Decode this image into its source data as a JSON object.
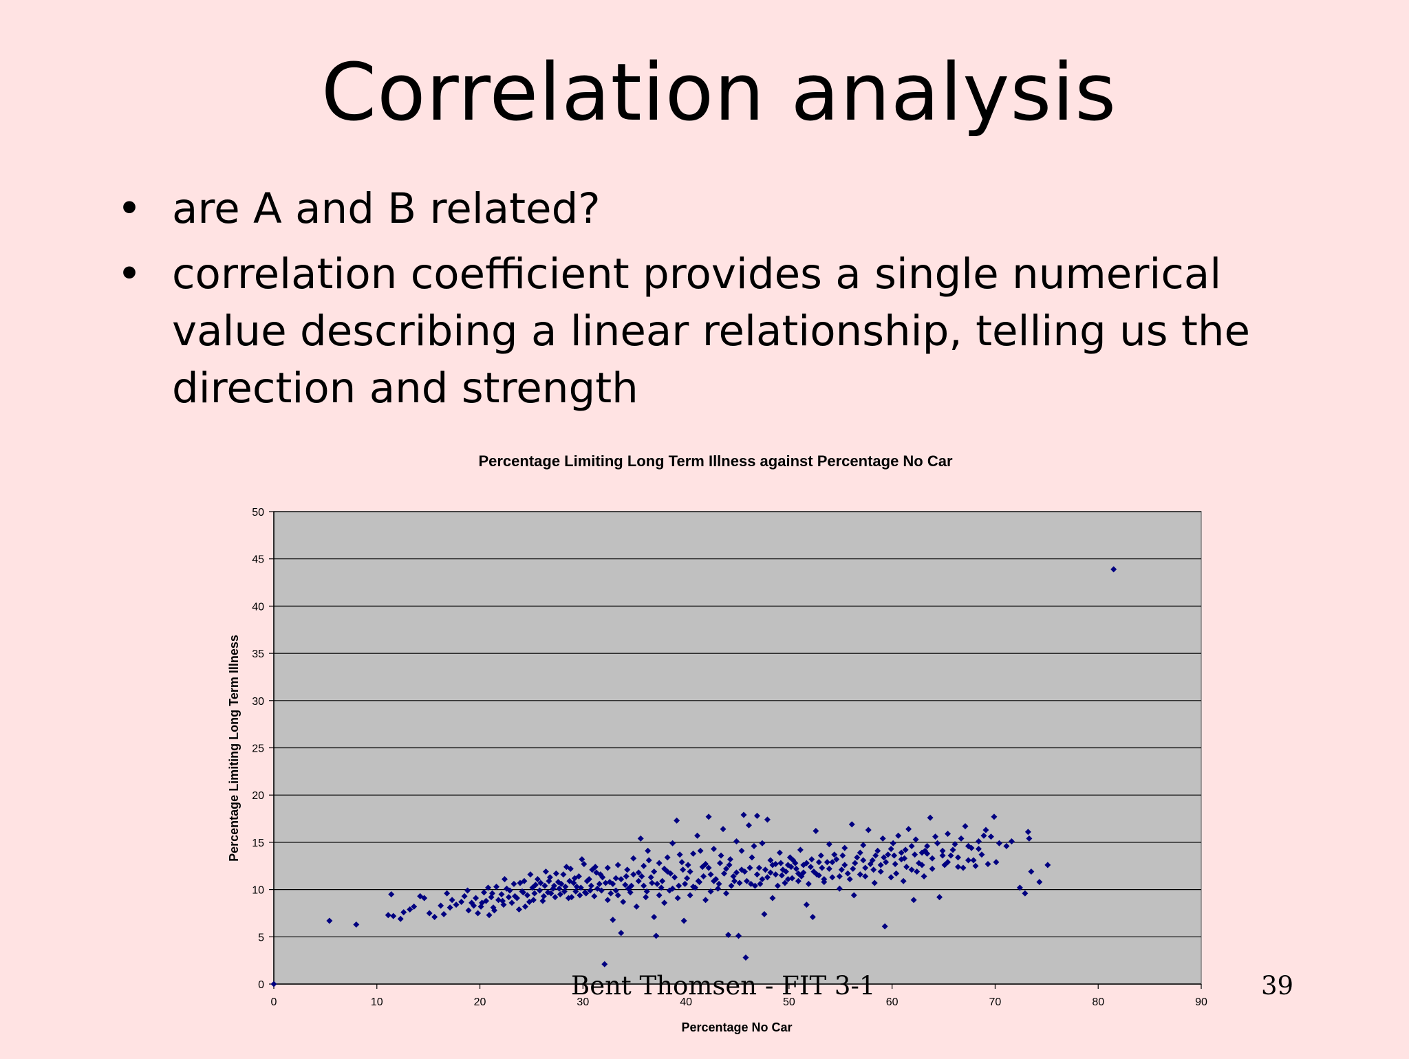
{
  "slide": {
    "title": "Correlation analysis",
    "bullets": [
      "are A and B related?",
      "correlation coefficient provides a single numerical value describing a linear relationship, telling us the direction and strength"
    ],
    "bullet_symbol": "•",
    "footer": "Bent Thomsen - FIT 3-1",
    "page_number": "39"
  },
  "chart_data": {
    "type": "scatter",
    "title": "Percentage Limiting Long Term Illness against Percentage No Car",
    "xlabel": "Percentage No Car",
    "ylabel": "Percentage Limiting Long Term Illness",
    "xlim": [
      0,
      90
    ],
    "ylim": [
      0,
      50
    ],
    "xticks": [
      0,
      10,
      20,
      30,
      40,
      50,
      60,
      70,
      80,
      90
    ],
    "yticks": [
      0,
      5,
      10,
      15,
      20,
      25,
      30,
      35,
      40,
      45,
      50
    ],
    "grid": "horizontal",
    "legend": "none",
    "colors": {
      "plot_background": "#c0c0c0",
      "marker": "#000080",
      "gridline": "#000000"
    },
    "points": [
      [
        0,
        0
      ],
      [
        5.4,
        6.7
      ],
      [
        8,
        6.3
      ],
      [
        11.1,
        7.3
      ],
      [
        11.4,
        9.5
      ],
      [
        11.6,
        7.2
      ],
      [
        12.3,
        6.9
      ],
      [
        12.6,
        7.6
      ],
      [
        13.2,
        7.9
      ],
      [
        13.6,
        8.2
      ],
      [
        14.2,
        9.3
      ],
      [
        14.6,
        9.1
      ],
      [
        15.1,
        7.5
      ],
      [
        15.6,
        7.1
      ],
      [
        16.2,
        8.3
      ],
      [
        16.5,
        7.4
      ],
      [
        16.8,
        9.6
      ],
      [
        17.3,
        8.9
      ],
      [
        17.7,
        8.4
      ],
      [
        18.2,
        8.7
      ],
      [
        18.5,
        9.3
      ],
      [
        18.9,
        7.8
      ],
      [
        19.2,
        8.6
      ],
      [
        19.6,
        9.1
      ],
      [
        19.8,
        7.5
      ],
      [
        20.1,
        8.2
      ],
      [
        20.4,
        9.7
      ],
      [
        20.6,
        8.8
      ],
      [
        20.9,
        7.3
      ],
      [
        21.1,
        9.2
      ],
      [
        21.3,
        8.1
      ],
      [
        21.6,
        10.3
      ],
      [
        21.8,
        8.9
      ],
      [
        22.1,
        9.5
      ],
      [
        22.3,
        8.4
      ],
      [
        22.6,
        10.1
      ],
      [
        22.8,
        9.2
      ],
      [
        23.1,
        8.6
      ],
      [
        23.3,
        10.6
      ],
      [
        23.6,
        9.1
      ],
      [
        23.8,
        7.9
      ],
      [
        24.1,
        9.8
      ],
      [
        24.3,
        10.9
      ],
      [
        24.6,
        9.4
      ],
      [
        24.8,
        8.7
      ],
      [
        25.1,
        10.2
      ],
      [
        25.3,
        9.6
      ],
      [
        25.6,
        11.1
      ],
      [
        25.8,
        9.9
      ],
      [
        26.1,
        8.8
      ],
      [
        26.3,
        10.4
      ],
      [
        26.6,
        9.7
      ],
      [
        26.8,
        11.3
      ],
      [
        27.1,
        10.1
      ],
      [
        27.3,
        9.2
      ],
      [
        27.6,
        10.8
      ],
      [
        27.8,
        9.5
      ],
      [
        28.1,
        11.6
      ],
      [
        28.3,
        10.3
      ],
      [
        28.6,
        9.1
      ],
      [
        28.8,
        12.2
      ],
      [
        29.1,
        10.7
      ],
      [
        29.3,
        9.8
      ],
      [
        29.6,
        11.4
      ],
      [
        29.8,
        10.2
      ],
      [
        30.1,
        12.7
      ],
      [
        30.3,
        9.6
      ],
      [
        30.6,
        11.1
      ],
      [
        30.8,
        10.4
      ],
      [
        31.1,
        9.3
      ],
      [
        31.3,
        11.8
      ],
      [
        31.6,
        10.6
      ],
      [
        31.8,
        9.9
      ],
      [
        32.1,
        2.1
      ],
      [
        32.4,
        12.3
      ],
      [
        32.6,
        10.8
      ],
      [
        32.9,
        6.8
      ],
      [
        33.2,
        11.2
      ],
      [
        33.4,
        9.4
      ],
      [
        33.7,
        5.4
      ],
      [
        34.1,
        10.5
      ],
      [
        34.3,
        12.1
      ],
      [
        34.6,
        9.7
      ],
      [
        34.9,
        11.6
      ],
      [
        35.2,
        8.2
      ],
      [
        35.4,
        10.9
      ],
      [
        35.6,
        15.4
      ],
      [
        35.9,
        12.5
      ],
      [
        36.1,
        9.2
      ],
      [
        36.3,
        14.1
      ],
      [
        36.6,
        11.3
      ],
      [
        36.9,
        7.1
      ],
      [
        37.1,
        5.1
      ],
      [
        37.4,
        12.8
      ],
      [
        37.6,
        10.2
      ],
      [
        37.9,
        8.6
      ],
      [
        38.2,
        13.4
      ],
      [
        38.5,
        11.7
      ],
      [
        38.7,
        14.9
      ],
      [
        39.1,
        17.3
      ],
      [
        39.3,
        10.4
      ],
      [
        39.6,
        12.9
      ],
      [
        39.8,
        6.7
      ],
      [
        40.1,
        11.2
      ],
      [
        40.4,
        9.4
      ],
      [
        40.7,
        13.8
      ],
      [
        41.1,
        15.7
      ],
      [
        41.3,
        10.8
      ],
      [
        41.6,
        12.4
      ],
      [
        41.9,
        8.9
      ],
      [
        42.2,
        17.7
      ],
      [
        42.4,
        11.6
      ],
      [
        42.7,
        14.3
      ],
      [
        43.1,
        10.1
      ],
      [
        43.3,
        12.8
      ],
      [
        43.6,
        16.4
      ],
      [
        43.9,
        9.6
      ],
      [
        44.1,
        5.2
      ],
      [
        44.3,
        13.2
      ],
      [
        44.6,
        11.4
      ],
      [
        44.9,
        15.1
      ],
      [
        45.1,
        5.1
      ],
      [
        45.4,
        12.1
      ],
      [
        45.6,
        17.9
      ],
      [
        45.8,
        2.8
      ],
      [
        46.1,
        16.8
      ],
      [
        46.3,
        10.6
      ],
      [
        46.6,
        14.6
      ],
      [
        46.9,
        17.8
      ],
      [
        47.1,
        12.3
      ],
      [
        47.4,
        11.1
      ],
      [
        47.6,
        7.4
      ],
      [
        47.9,
        17.4
      ],
      [
        48.2,
        13.1
      ],
      [
        48.4,
        9.1
      ],
      [
        48.7,
        12.7
      ],
      [
        49.1,
        13.9
      ],
      [
        49.3,
        11.5
      ],
      [
        49.6,
        10.7
      ],
      [
        49.9,
        12.6
      ],
      [
        50.1,
        13.4
      ],
      [
        50.3,
        11.2
      ],
      [
        50.6,
        12.8
      ],
      [
        50.9,
        10.9
      ],
      [
        51.1,
        14.2
      ],
      [
        51.4,
        11.8
      ],
      [
        51.7,
        8.4
      ],
      [
        52.1,
        12.4
      ],
      [
        52.3,
        7.1
      ],
      [
        52.6,
        16.2
      ],
      [
        52.9,
        11.5
      ],
      [
        53.1,
        13.6
      ],
      [
        53.4,
        10.8
      ],
      [
        53.7,
        12.9
      ],
      [
        53.9,
        14.8
      ],
      [
        54.2,
        11.3
      ],
      [
        54.6,
        13.2
      ],
      [
        54.9,
        10.1
      ],
      [
        55.1,
        12.1
      ],
      [
        55.4,
        14.4
      ],
      [
        55.7,
        11.7
      ],
      [
        56.1,
        16.9
      ],
      [
        56.3,
        9.4
      ],
      [
        56.6,
        13.4
      ],
      [
        56.9,
        11.6
      ],
      [
        57.2,
        14.7
      ],
      [
        57.4,
        12.3
      ],
      [
        57.7,
        16.3
      ],
      [
        58.1,
        13.1
      ],
      [
        58.3,
        10.7
      ],
      [
        58.6,
        14.1
      ],
      [
        58.9,
        12.6
      ],
      [
        59.1,
        15.4
      ],
      [
        59.3,
        6.1
      ],
      [
        59.6,
        13.7
      ],
      [
        59.9,
        11.3
      ],
      [
        60.1,
        14.9
      ],
      [
        60.3,
        12.7
      ],
      [
        60.6,
        15.7
      ],
      [
        60.9,
        13.2
      ],
      [
        61.1,
        10.9
      ],
      [
        61.3,
        14.2
      ],
      [
        61.6,
        16.4
      ],
      [
        61.9,
        12.1
      ],
      [
        62.1,
        8.9
      ],
      [
        62.3,
        15.3
      ],
      [
        62.6,
        12.8
      ],
      [
        62.9,
        13.9
      ],
      [
        63.1,
        11.4
      ],
      [
        63.4,
        14.6
      ],
      [
        63.7,
        17.6
      ],
      [
        63.9,
        13.3
      ],
      [
        64.2,
        15.6
      ],
      [
        64.6,
        9.2
      ],
      [
        64.9,
        14.1
      ],
      [
        65.1,
        12.6
      ],
      [
        65.4,
        15.9
      ],
      [
        65.7,
        13.6
      ],
      [
        66.1,
        14.8
      ],
      [
        66.4,
        12.4
      ],
      [
        66.7,
        15.4
      ],
      [
        67.1,
        16.7
      ],
      [
        67.4,
        13.1
      ],
      [
        67.7,
        14.4
      ],
      [
        68.1,
        12.5
      ],
      [
        68.4,
        15.1
      ],
      [
        68.7,
        13.7
      ],
      [
        69.1,
        16.3
      ],
      [
        69.3,
        12.7
      ],
      [
        69.6,
        15.6
      ],
      [
        69.9,
        17.7
      ],
      [
        70.1,
        12.9
      ],
      [
        70.4,
        14.9
      ],
      [
        71.1,
        14.6
      ],
      [
        71.6,
        15.1
      ],
      [
        72.4,
        10.2
      ],
      [
        72.9,
        9.6
      ],
      [
        73.2,
        16.1
      ],
      [
        73.3,
        15.4
      ],
      [
        73.5,
        11.9
      ],
      [
        74.3,
        10.8
      ],
      [
        75.1,
        12.6
      ],
      [
        81.5,
        43.9
      ],
      [
        17.1,
        8.1
      ],
      [
        18.8,
        9.9
      ],
      [
        19.4,
        8.3
      ],
      [
        20.8,
        10.2
      ],
      [
        21.4,
        7.8
      ],
      [
        22.4,
        11.1
      ],
      [
        23.4,
        9.3
      ],
      [
        24.4,
        8.2
      ],
      [
        24.9,
        11.6
      ],
      [
        25.4,
        10.5
      ],
      [
        26.4,
        11.9
      ],
      [
        26.9,
        9.6
      ],
      [
        27.4,
        11.7
      ],
      [
        27.9,
        10.6
      ],
      [
        28.4,
        12.4
      ],
      [
        28.9,
        9.2
      ],
      [
        29.4,
        10.3
      ],
      [
        29.9,
        13.2
      ],
      [
        30.4,
        10.9
      ],
      [
        30.9,
        12.1
      ],
      [
        31.4,
        10.1
      ],
      [
        31.9,
        11.3
      ],
      [
        32.4,
        8.9
      ],
      [
        32.9,
        10.6
      ],
      [
        33.4,
        12.6
      ],
      [
        33.9,
        8.7
      ],
      [
        34.4,
        10.1
      ],
      [
        34.9,
        13.3
      ],
      [
        35.4,
        11.8
      ],
      [
        35.9,
        10.4
      ],
      [
        36.4,
        13.1
      ],
      [
        36.9,
        11.9
      ],
      [
        37.4,
        9.4
      ],
      [
        37.9,
        12.2
      ],
      [
        38.4,
        9.9
      ],
      [
        38.9,
        11.3
      ],
      [
        39.4,
        13.7
      ],
      [
        39.9,
        10.6
      ],
      [
        40.4,
        11.9
      ],
      [
        40.9,
        10.2
      ],
      [
        41.4,
        14.1
      ],
      [
        41.9,
        12.7
      ],
      [
        42.4,
        9.8
      ],
      [
        42.9,
        11.1
      ],
      [
        43.4,
        13.6
      ],
      [
        43.9,
        12.2
      ],
      [
        44.4,
        10.4
      ],
      [
        44.9,
        11.8
      ],
      [
        45.4,
        14.1
      ],
      [
        45.9,
        10.9
      ],
      [
        46.4,
        13.4
      ],
      [
        46.9,
        11.6
      ],
      [
        47.4,
        14.9
      ],
      [
        47.9,
        11.3
      ],
      [
        48.4,
        12.6
      ],
      [
        48.9,
        10.4
      ],
      [
        49.4,
        12.1
      ],
      [
        49.9,
        11.1
      ],
      [
        50.4,
        13.1
      ],
      [
        50.9,
        11.7
      ],
      [
        51.4,
        12.6
      ],
      [
        51.9,
        10.6
      ],
      [
        52.4,
        11.9
      ],
      [
        52.9,
        12.9
      ],
      [
        53.4,
        11.1
      ],
      [
        53.9,
        12.2
      ],
      [
        54.4,
        13.7
      ],
      [
        54.9,
        11.4
      ],
      [
        55.4,
        12.6
      ],
      [
        55.9,
        11.1
      ],
      [
        56.4,
        12.8
      ],
      [
        56.9,
        13.9
      ],
      [
        57.4,
        11.4
      ],
      [
        57.9,
        12.7
      ],
      [
        58.4,
        13.6
      ],
      [
        58.9,
        11.9
      ],
      [
        59.4,
        12.9
      ],
      [
        59.9,
        14.3
      ],
      [
        60.4,
        11.7
      ],
      [
        60.9,
        13.9
      ],
      [
        61.4,
        12.4
      ],
      [
        61.9,
        14.6
      ],
      [
        62.4,
        11.9
      ],
      [
        62.9,
        12.6
      ],
      [
        63.4,
        13.8
      ],
      [
        63.9,
        12.2
      ],
      [
        64.4,
        14.9
      ],
      [
        64.9,
        13.6
      ],
      [
        65.4,
        12.9
      ],
      [
        65.9,
        14.2
      ],
      [
        66.4,
        13.4
      ],
      [
        66.9,
        12.3
      ],
      [
        67.4,
        14.6
      ],
      [
        67.9,
        13.1
      ],
      [
        68.4,
        14.3
      ],
      [
        68.9,
        15.7
      ],
      [
        22.9,
        9.9
      ],
      [
        23.9,
        10.7
      ],
      [
        25.9,
        10.7
      ],
      [
        26.2,
        9.3
      ],
      [
        27.2,
        10.4
      ],
      [
        28.2,
        9.8
      ],
      [
        29.2,
        11.2
      ],
      [
        30.2,
        9.7
      ],
      [
        31.2,
        12.4
      ],
      [
        32.2,
        10.7
      ],
      [
        33.2,
        9.9
      ],
      [
        34.2,
        11.4
      ],
      [
        36.2,
        9.8
      ],
      [
        37.2,
        10.6
      ],
      [
        38.2,
        11.9
      ],
      [
        39.2,
        9.1
      ],
      [
        40.2,
        12.6
      ],
      [
        41.2,
        10.9
      ],
      [
        42.2,
        12.3
      ],
      [
        43.2,
        10.6
      ],
      [
        44.2,
        12.6
      ],
      [
        45.2,
        10.7
      ],
      [
        46.2,
        12.3
      ],
      [
        47.2,
        10.6
      ],
      [
        48.2,
        11.8
      ],
      [
        49.2,
        12.8
      ],
      [
        50.2,
        12.4
      ],
      [
        51.2,
        11.4
      ],
      [
        52.2,
        13.2
      ],
      [
        53.2,
        12.3
      ],
      [
        54.2,
        12.9
      ],
      [
        55.2,
        13.6
      ],
      [
        56.2,
        12.2
      ],
      [
        57.2,
        13.1
      ],
      [
        58.2,
        12.1
      ],
      [
        59.2,
        13.4
      ],
      [
        60.2,
        13.6
      ],
      [
        61.2,
        13.3
      ],
      [
        62.2,
        13.7
      ],
      [
        63.2,
        14.1
      ],
      [
        20.2,
        8.6
      ],
      [
        21.2,
        9.6
      ],
      [
        22.2,
        8.8
      ],
      [
        24.2,
        9.7
      ],
      [
        25.2,
        8.9
      ],
      [
        26.7,
        10.9
      ],
      [
        27.7,
        10.1
      ],
      [
        28.7,
        10.9
      ],
      [
        29.7,
        9.4
      ],
      [
        30.7,
        9.9
      ],
      [
        31.7,
        11.6
      ],
      [
        32.7,
        9.6
      ],
      [
        33.7,
        11.1
      ],
      [
        34.7,
        10.4
      ],
      [
        35.7,
        11.4
      ],
      [
        36.7,
        10.7
      ],
      [
        37.7,
        10.9
      ],
      [
        38.7,
        10.1
      ],
      [
        39.7,
        12.1
      ],
      [
        40.7,
        10.3
      ],
      [
        41.7,
        11.4
      ],
      [
        42.7,
        10.9
      ],
      [
        43.7,
        11.7
      ],
      [
        44.7,
        10.9
      ],
      [
        45.7,
        11.9
      ],
      [
        46.7,
        10.4
      ],
      [
        47.7,
        12.1
      ],
      [
        48.7,
        11.6
      ],
      [
        49.7,
        11.9
      ],
      [
        50.7,
        12.2
      ],
      [
        51.7,
        12.8
      ],
      [
        52.7,
        11.6
      ]
    ]
  }
}
